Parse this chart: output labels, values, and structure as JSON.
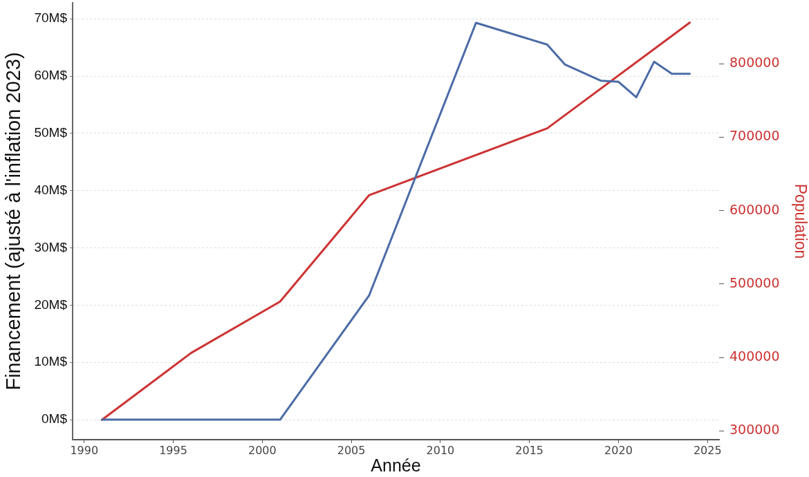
{
  "chart_data": {
    "type": "line",
    "xlabel": "Année",
    "ylabel": "Financement (ajusté à l'inflation 2023)",
    "y2label": "Population",
    "xlim": [
      1989.35,
      2025.65
    ],
    "xticks": [
      1990,
      1995,
      2000,
      2005,
      2010,
      2015,
      2020,
      2025
    ],
    "ylim": [
      -3.5,
      72.8
    ],
    "yticks": [
      {
        "value": 0,
        "label": "0M$"
      },
      {
        "value": 10,
        "label": "10M$"
      },
      {
        "value": 20,
        "label": "20M$"
      },
      {
        "value": 30,
        "label": "30M$"
      },
      {
        "value": 40,
        "label": "40M$"
      },
      {
        "value": 50,
        "label": "50M$"
      },
      {
        "value": 60,
        "label": "60M$"
      },
      {
        "value": 70,
        "label": "70M$"
      }
    ],
    "y2lim": [
      288000,
      883000
    ],
    "y2ticks": [
      300000,
      400000,
      500000,
      600000,
      700000,
      800000
    ],
    "grid": "y",
    "series": [
      {
        "color": "#4b6ba6",
        "x": [
          1991,
          1996,
          2001,
          2006,
          2012,
          2016,
          2017,
          2019,
          2020,
          2021,
          2022,
          2023,
          2024
        ],
        "values": [
          0,
          0,
          0,
          21.7,
          69.3,
          65.5,
          62.0,
          59.2,
          59.0,
          56.3,
          62.5,
          60.4,
          60.4
        ]
      },
      {
        "color": "#cc3333",
        "axis": "y2",
        "x": [
          1991,
          1996,
          2001,
          2006,
          2016,
          2024
        ],
        "values": [
          315000,
          406000,
          476000,
          621000,
          712000,
          856000
        ]
      }
    ]
  }
}
